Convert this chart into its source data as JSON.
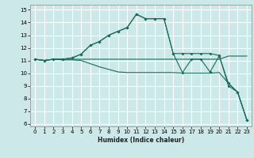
{
  "xlabel": "Humidex (Indice chaleur)",
  "bg_color": "#cce8e8",
  "grid_color": "#ffffff",
  "line_color": "#1a6b5a",
  "xlim": [
    -0.5,
    23.5
  ],
  "ylim": [
    5.8,
    15.4
  ],
  "xticks": [
    0,
    1,
    2,
    3,
    4,
    5,
    6,
    7,
    8,
    9,
    10,
    11,
    12,
    13,
    14,
    15,
    16,
    17,
    18,
    19,
    20,
    21,
    22,
    23
  ],
  "yticks": [
    6,
    7,
    8,
    9,
    10,
    11,
    12,
    13,
    14,
    15
  ],
  "line1_x": [
    0,
    1,
    2,
    3,
    4,
    5,
    6,
    7,
    8,
    9,
    10,
    11,
    12,
    13,
    14,
    15,
    16,
    17,
    18,
    19,
    20,
    21,
    22,
    23
  ],
  "line1_y": [
    11.1,
    11.0,
    11.1,
    11.1,
    11.1,
    11.1,
    11.1,
    11.1,
    11.1,
    11.1,
    11.1,
    11.1,
    11.1,
    11.1,
    11.1,
    11.1,
    11.1,
    11.1,
    11.1,
    11.1,
    11.1,
    11.35,
    11.35,
    11.35
  ],
  "line2_x": [
    0,
    1,
    2,
    3,
    4,
    5,
    6,
    7,
    8,
    9,
    10,
    11,
    12,
    13,
    14,
    15,
    16,
    17,
    18,
    19,
    20,
    21,
    22,
    23
  ],
  "line2_y": [
    11.1,
    11.0,
    11.1,
    11.05,
    11.05,
    11.0,
    10.75,
    10.5,
    10.3,
    10.1,
    10.05,
    10.05,
    10.05,
    10.05,
    10.05,
    10.05,
    10.0,
    10.0,
    10.0,
    10.0,
    10.05,
    9.2,
    8.5,
    6.3
  ],
  "line3_x": [
    0,
    1,
    2,
    3,
    4,
    5,
    6,
    7,
    8,
    9,
    10,
    11,
    12,
    13,
    14,
    15,
    16,
    17,
    18,
    19,
    20,
    21,
    22,
    23
  ],
  "line3_y": [
    11.1,
    11.0,
    11.1,
    11.1,
    11.2,
    11.5,
    12.2,
    12.5,
    13.0,
    13.3,
    13.6,
    14.65,
    14.3,
    14.3,
    14.3,
    11.55,
    11.55,
    11.55,
    11.55,
    11.55,
    11.4,
    9.0,
    8.5,
    6.3
  ],
  "line4_x": [
    0,
    1,
    2,
    3,
    4,
    5,
    6,
    7,
    8,
    9,
    10,
    11,
    12,
    13,
    14,
    15,
    16,
    17,
    18,
    19,
    20,
    21,
    22,
    23
  ],
  "line4_y": [
    11.1,
    11.0,
    11.1,
    11.1,
    11.2,
    11.5,
    12.2,
    12.5,
    13.0,
    13.3,
    13.6,
    14.65,
    14.3,
    14.3,
    14.3,
    11.55,
    10.05,
    11.1,
    11.1,
    10.1,
    11.35,
    9.2,
    8.5,
    6.3
  ]
}
